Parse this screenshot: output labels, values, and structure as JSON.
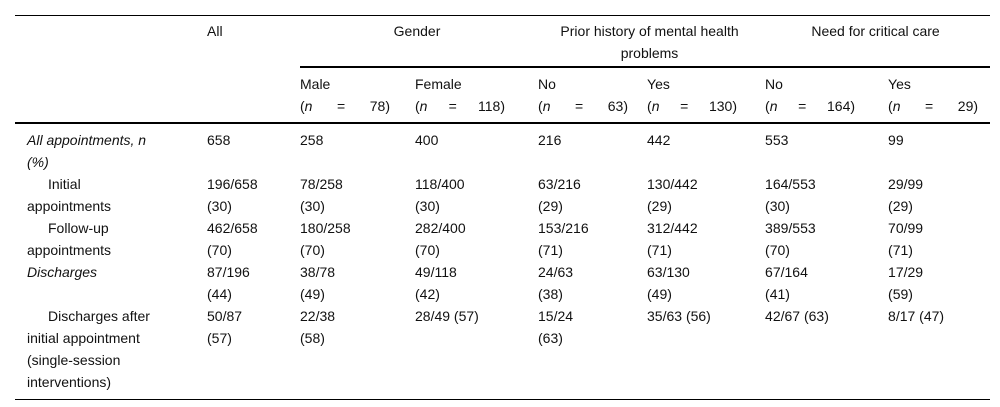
{
  "table": {
    "header": {
      "all_label": "All",
      "groups": [
        {
          "label": "Gender",
          "columns": [
            {
              "name": "Male",
              "n": "78"
            },
            {
              "name": "Female",
              "n": "118"
            }
          ]
        },
        {
          "label": "Prior history of mental health\nproblems",
          "columns": [
            {
              "name": "No",
              "n": "63"
            },
            {
              "name": "Yes",
              "n": "130"
            }
          ]
        },
        {
          "label": "Need for critical care",
          "columns": [
            {
              "name": "No",
              "n": "164"
            },
            {
              "name": "Yes",
              "n": "29"
            }
          ]
        }
      ]
    },
    "rows": [
      {
        "style": "italic",
        "label": "All appointments, n\n(%)",
        "values": [
          "658",
          "258",
          "400",
          "216",
          "442",
          "553",
          "99"
        ]
      },
      {
        "style": "indent",
        "label": "Initial\nappointments",
        "values": [
          "196/658\n(30)",
          "78/258\n(30)",
          "118/400\n(30)",
          "63/216\n(29)",
          "130/442\n(29)",
          "164/553\n(30)",
          "29/99\n(29)"
        ]
      },
      {
        "style": "indent",
        "label": "Follow-up\nappointments",
        "values": [
          "462/658\n(70)",
          "180/258\n(70)",
          "282/400\n(70)",
          "153/216\n(71)",
          "312/442\n(71)",
          "389/553\n(70)",
          "70/99\n(71)"
        ]
      },
      {
        "style": "italic",
        "label": "Discharges",
        "values": [
          "87/196\n(44)",
          "38/78\n(49)",
          "49/118\n(42)",
          "24/63\n(38)",
          "63/130\n(49)",
          "67/164\n(41)",
          "17/29\n(59)"
        ]
      },
      {
        "style": "indent",
        "label": "Discharges after\ninitial appointment\n(single-session\ninterventions)",
        "values": [
          "50/87\n(57)",
          "22/38\n(58)",
          "28/49 (57)",
          "15/24\n(63)",
          "35/63 (56)",
          "42/67 (63)",
          "8/17 (47)"
        ]
      }
    ]
  }
}
